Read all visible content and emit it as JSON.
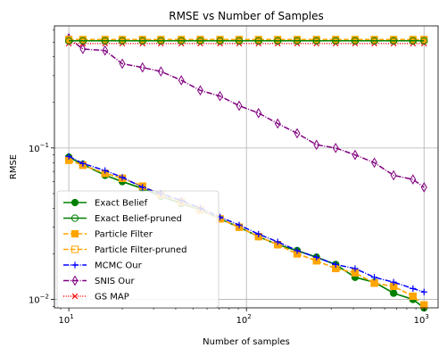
{
  "chart_data": {
    "type": "line",
    "title": "RMSE vs Number of Samples",
    "xlabel": "Number of samples",
    "ylabel": "RMSE",
    "xscale": "log",
    "yscale": "log",
    "xlim": [
      8.3,
      1200
    ],
    "ylim": [
      0.0088,
      0.64
    ],
    "grid": "major",
    "legend_position": "lower-left",
    "x_ticks": [
      {
        "value": 10,
        "base": "10",
        "exp": "1"
      },
      {
        "value": 100,
        "base": "10",
        "exp": "2"
      },
      {
        "value": 1000,
        "base": "10",
        "exp": "3"
      }
    ],
    "y_ticks": [
      {
        "value": 0.01,
        "base": "10",
        "exp": "−2"
      },
      {
        "value": 0.1,
        "base": "10",
        "exp": "−1"
      }
    ],
    "x": [
      10,
      12,
      16,
      20,
      26,
      33,
      43,
      55,
      71,
      91,
      117,
      150,
      193,
      248,
      318,
      409,
      525,
      674,
      866,
      1000
    ],
    "series": [
      {
        "name": "Exact Belief",
        "color": "#008000",
        "linestyle": "solid",
        "marker": "circle-filled",
        "values": [
          0.087,
          0.078,
          0.066,
          0.06,
          0.054,
          0.048,
          0.043,
          0.039,
          0.034,
          0.03,
          0.026,
          0.023,
          0.021,
          0.019,
          0.017,
          0.014,
          0.013,
          0.011,
          0.01,
          0.0088
        ]
      },
      {
        "name": "Exact Belief-pruned",
        "color": "#008000",
        "linestyle": "solid",
        "marker": "circle-open",
        "values": [
          0.087,
          0.078,
          0.066,
          0.06,
          0.054,
          0.048,
          0.043,
          0.039,
          0.034,
          0.03,
          0.026,
          0.023,
          0.021,
          0.019,
          0.017,
          0.014,
          0.013,
          0.011,
          0.01,
          0.0088
        ]
      },
      {
        "name": "Particle Filter",
        "color": "#FFA500",
        "linestyle": "dashed",
        "marker": "square-filled",
        "values": [
          0.083,
          0.077,
          0.068,
          0.063,
          0.056,
          0.049,
          0.044,
          0.039,
          0.034,
          0.03,
          0.026,
          0.023,
          0.02,
          0.018,
          0.016,
          0.015,
          0.0128,
          0.0122,
          0.0105,
          0.0092
        ]
      },
      {
        "name": "Particle Filter-pruned",
        "color": "#FFA500",
        "linestyle": "dashed",
        "marker": "square-open",
        "values": [
          0.083,
          0.077,
          0.068,
          0.063,
          0.056,
          0.049,
          0.044,
          0.039,
          0.034,
          0.03,
          0.026,
          0.023,
          0.02,
          0.018,
          0.016,
          0.015,
          0.0128,
          0.0122,
          0.0105,
          0.0092
        ]
      },
      {
        "name": "MCMC Our",
        "color": "#0000FF",
        "linestyle": "dashdot",
        "marker": "plus",
        "values": [
          0.088,
          0.079,
          0.071,
          0.064,
          0.055,
          0.05,
          0.045,
          0.04,
          0.035,
          0.031,
          0.027,
          0.024,
          0.021,
          0.019,
          0.017,
          0.016,
          0.014,
          0.013,
          0.0118,
          0.0112
        ]
      },
      {
        "name": "SNIS Our",
        "color": "#800080",
        "linestyle": "dashdot",
        "marker": "diamond-open",
        "values": [
          0.53,
          0.45,
          0.44,
          0.36,
          0.34,
          0.32,
          0.28,
          0.24,
          0.22,
          0.19,
          0.17,
          0.145,
          0.125,
          0.105,
          0.1,
          0.09,
          0.08,
          0.066,
          0.062,
          0.055
        ]
      },
      {
        "name": "GS MAP",
        "color": "#FF0000",
        "linestyle": "dotted",
        "marker": "x",
        "values": [
          0.49,
          0.49,
          0.49,
          0.49,
          0.49,
          0.49,
          0.49,
          0.49,
          0.49,
          0.49,
          0.49,
          0.49,
          0.49,
          0.49,
          0.49,
          0.49,
          0.49,
          0.49,
          0.49,
          0.49
        ]
      },
      {
        "name": "",
        "color": "#FFA500",
        "linestyle": "dashed",
        "marker": "square-filled",
        "values": [
          0.52,
          0.52,
          0.52,
          0.52,
          0.52,
          0.52,
          0.52,
          0.52,
          0.52,
          0.52,
          0.52,
          0.52,
          0.52,
          0.52,
          0.52,
          0.52,
          0.52,
          0.52,
          0.52,
          0.52
        ]
      },
      {
        "name": "",
        "color": "#008000",
        "linestyle": "solid",
        "marker": "circle-open",
        "values": [
          0.51,
          0.51,
          0.51,
          0.51,
          0.51,
          0.51,
          0.51,
          0.51,
          0.51,
          0.51,
          0.51,
          0.51,
          0.51,
          0.51,
          0.51,
          0.51,
          0.51,
          0.51,
          0.51,
          0.51
        ]
      }
    ]
  }
}
